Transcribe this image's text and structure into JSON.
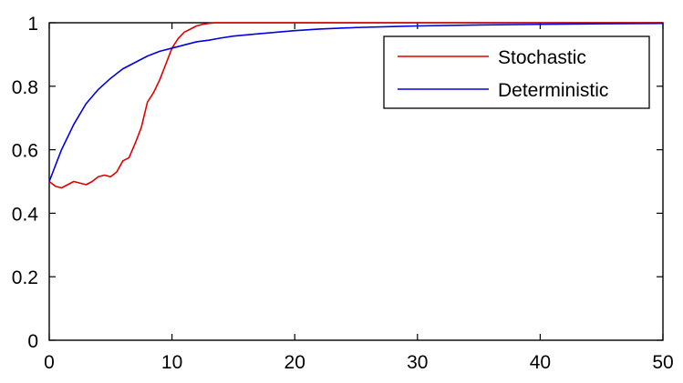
{
  "chart_data": {
    "type": "line",
    "title": "",
    "xlabel": "",
    "ylabel": "",
    "xlim": [
      0,
      50
    ],
    "ylim": [
      0,
      1
    ],
    "xticks": [
      0,
      10,
      20,
      30,
      40,
      50
    ],
    "yticks": [
      0,
      0.2,
      0.4,
      0.6,
      0.8,
      1
    ],
    "xtick_labels": [
      "0",
      "10",
      "20",
      "30",
      "40",
      "50"
    ],
    "ytick_labels": [
      "0",
      "0.2",
      "0.4",
      "0.6",
      "0.8",
      "1"
    ],
    "grid": false,
    "legend_position": "top-right",
    "series": [
      {
        "name": "Stochastic",
        "color": "#e00000",
        "x": [
          0,
          0.5,
          1,
          1.5,
          2,
          2.5,
          3,
          3.5,
          4,
          4.5,
          5,
          5.5,
          6,
          6.5,
          7,
          7.5,
          8,
          8.5,
          9,
          9.5,
          10,
          10.5,
          11,
          11.5,
          12,
          12.5,
          13,
          13.5,
          14,
          15,
          16,
          18,
          20,
          25,
          30,
          35,
          40,
          45,
          50
        ],
        "y": [
          0.5,
          0.485,
          0.48,
          0.49,
          0.5,
          0.495,
          0.49,
          0.5,
          0.515,
          0.52,
          0.515,
          0.53,
          0.565,
          0.575,
          0.62,
          0.67,
          0.75,
          0.78,
          0.82,
          0.87,
          0.92,
          0.95,
          0.97,
          0.98,
          0.99,
          0.995,
          0.998,
          1.0,
          1.0,
          1.0,
          1.0,
          1.0,
          1.0,
          1.0,
          1.0,
          1.0,
          1.0,
          1.0,
          1.0
        ]
      },
      {
        "name": "Deterministic",
        "color": "#0000e0",
        "x": [
          0,
          1,
          2,
          3,
          4,
          5,
          6,
          7,
          8,
          9,
          10,
          11,
          12,
          13,
          14,
          15,
          17,
          20,
          22,
          25,
          28,
          30,
          35,
          40,
          45,
          50
        ],
        "y": [
          0.5,
          0.6,
          0.68,
          0.745,
          0.79,
          0.825,
          0.855,
          0.875,
          0.895,
          0.91,
          0.92,
          0.93,
          0.94,
          0.945,
          0.952,
          0.958,
          0.965,
          0.975,
          0.98,
          0.985,
          0.988,
          0.99,
          0.993,
          0.995,
          0.997,
          0.998
        ]
      }
    ]
  }
}
